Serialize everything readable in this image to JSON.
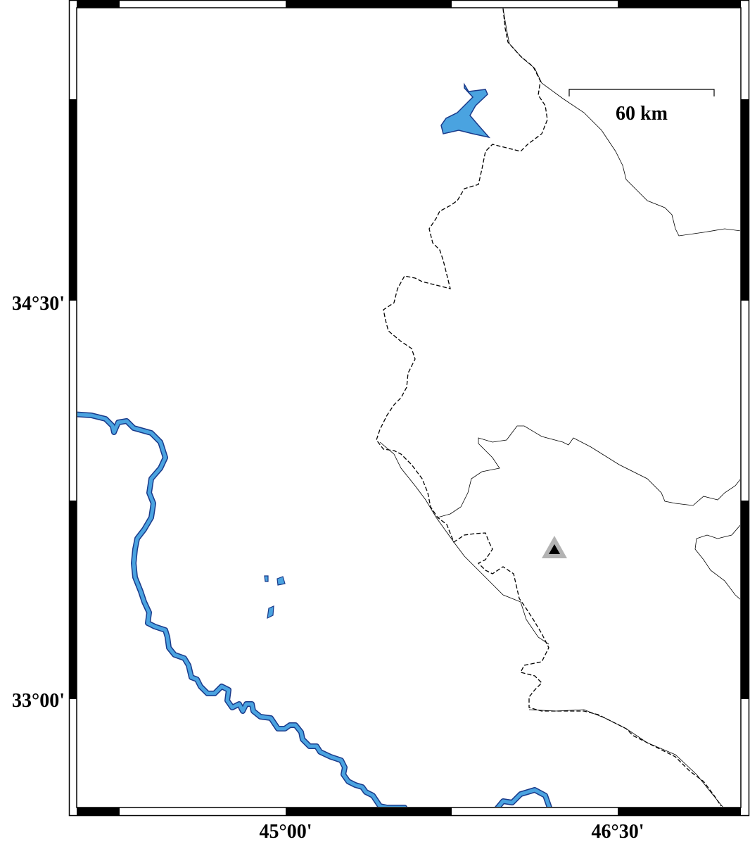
{
  "map": {
    "frame_style": "fancy",
    "latitude_labels": [
      "34°30'",
      "33°00'"
    ],
    "longitude_labels": [
      "45°00'",
      "46°30'"
    ],
    "scale_bar": {
      "label": "60 km"
    },
    "marker": {
      "symbol": "triangle",
      "outer_color": "#b3b3b3",
      "inner_color": "#000000"
    },
    "colors": {
      "water_fill": "#4aa3e0",
      "water_outline": "#1a3a8a",
      "border_line": "#000000",
      "land": "#ffffff"
    },
    "layers": [
      "rivers",
      "lakes",
      "international-border-dashed",
      "province-borders-solid",
      "station-marker",
      "scale-bar"
    ]
  }
}
